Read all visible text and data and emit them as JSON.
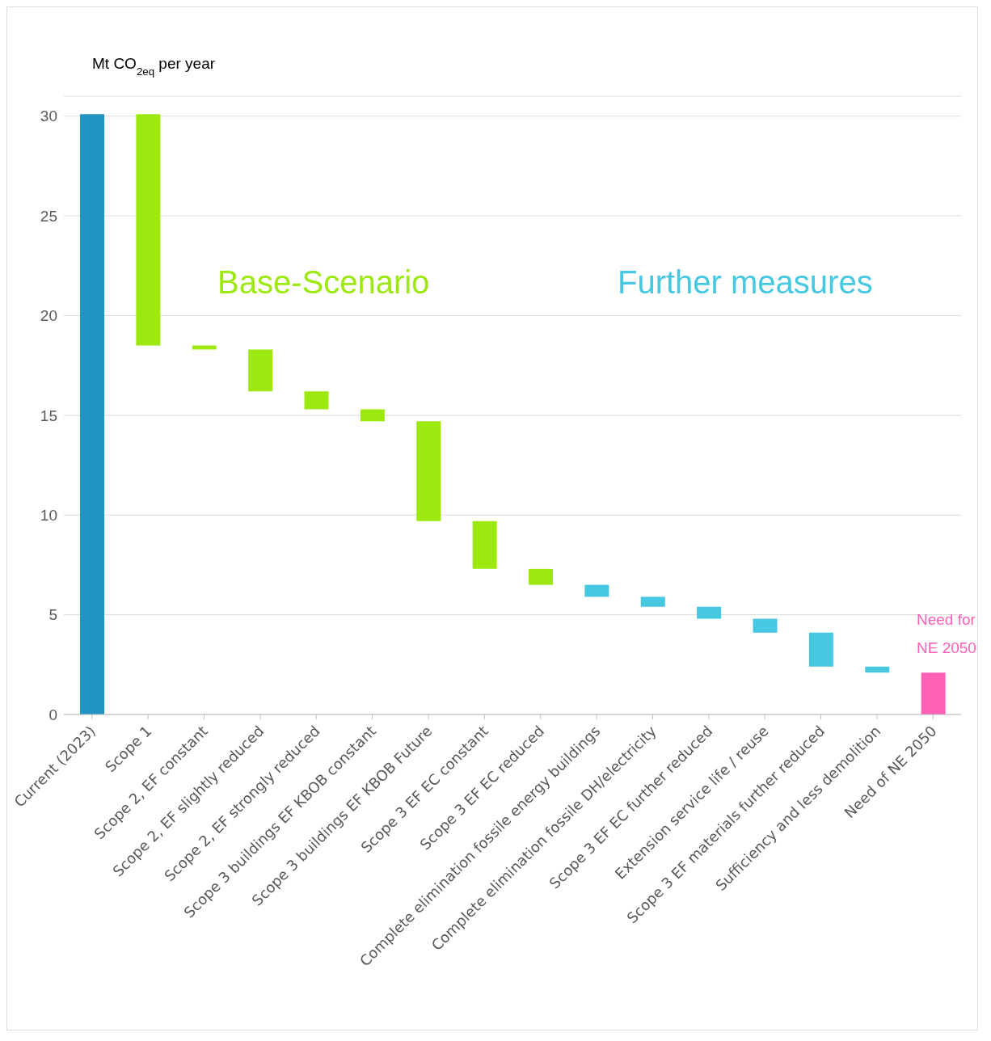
{
  "chart_data": {
    "type": "bar",
    "ylabel": "Mt CO$_{2eq}$ per year",
    "categories": [
      "Current (2023)",
      "Scope 1",
      "Scope 2, EF constant",
      "Scope 2, EF slightly reduced",
      "Scope 2, EF strongly reduced",
      "Scope 3 buildings EF KBOB constant",
      "Scope 3 buildings EF KBOB Future",
      "Scope 3 EF EC constant",
      "Scope 3 EF EC reduced",
      "Complete elimination fossile energy buildings",
      "Complete elimination fossile DH/electricity",
      "Scope 3 EF EC further reduced",
      "Extension service life / reuse",
      "Scope 3 EF materials further reduced",
      "Sufficiency and less demolition",
      "Need of NE 2050"
    ],
    "base": [
      0,
      18.5,
      18.3,
      16.2,
      15.3,
      14.7,
      9.7,
      7.3,
      6.5,
      5.9,
      5.4,
      4.8,
      4.1,
      2.4,
      2.1,
      0
    ],
    "values": [
      30.1,
      11.6,
      0.2,
      2.1,
      0.9,
      0.6,
      5.0,
      2.4,
      0.8,
      0.6,
      0.5,
      0.6,
      0.7,
      1.7,
      0.3,
      2.1
    ],
    "colors": [
      "#1f95c4",
      "#9de80f",
      "#9de80f",
      "#9de80f",
      "#9de80f",
      "#9de80f",
      "#9de80f",
      "#9de80f",
      "#9de80f",
      "#45c8e0",
      "#45c8e0",
      "#45c8e0",
      "#45c8e0",
      "#45c8e0",
      "#45c8e0",
      "#ff5fb5"
    ],
    "annotations": [
      "Base-Scenario",
      "Further measures",
      "Need for NE 2050"
    ],
    "ylim": [
      0,
      31
    ],
    "yticks": [
      0,
      5,
      10,
      15,
      20,
      25,
      30
    ],
    "grid": "y",
    "legend": false
  }
}
